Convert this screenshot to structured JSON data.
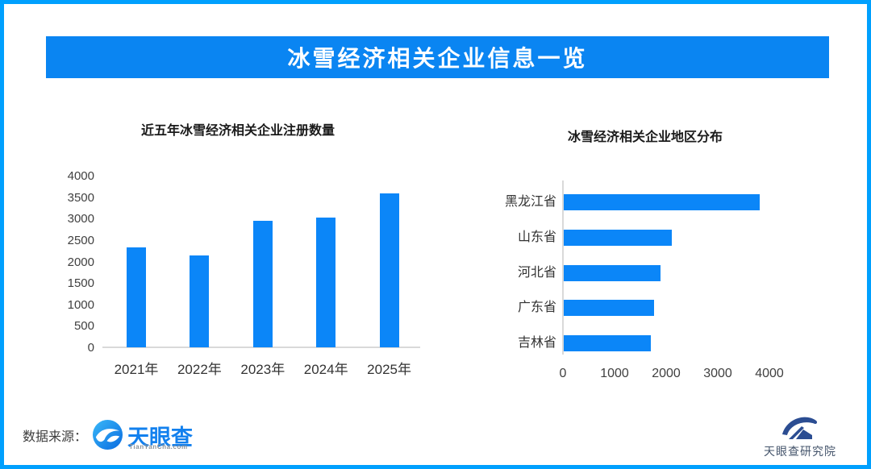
{
  "banner": {
    "title": "冰雪经济相关企业信息一览"
  },
  "colors": {
    "frame_border": "#00a0fe",
    "banner_bg": "#0a85f2",
    "bar_blue": "#0b86f8",
    "axis_line": "#d9d9d9",
    "tianyancha_blue": "#1280ee",
    "research_navy": "#2b4d92"
  },
  "chart_data": [
    {
      "id": "registrations-by-year",
      "type": "bar",
      "title": "近五年冰雪经济相关企业注册数量",
      "categories": [
        "2021年",
        "2022年",
        "2023年",
        "2024年",
        "2025年"
      ],
      "values": [
        2320,
        2140,
        2950,
        3030,
        3580
      ],
      "xlabel": "",
      "ylabel": "",
      "ylim": [
        0,
        4000
      ],
      "yticks": [
        0,
        500,
        1000,
        1500,
        2000,
        2500,
        3000,
        3500,
        4000
      ],
      "grid": false,
      "legend": false
    },
    {
      "id": "distribution-by-region",
      "type": "bar-horizontal",
      "title": "冰雪经济相关企业地区分布",
      "categories": [
        "黑龙江省",
        "山东省",
        "河北省",
        "广东省",
        "吉林省"
      ],
      "values": [
        3800,
        2100,
        1870,
        1750,
        1680
      ],
      "xlabel": "",
      "ylabel": "",
      "xlim": [
        0,
        4000
      ],
      "xticks": [
        0,
        1000,
        2000,
        3000,
        4000
      ],
      "grid": false,
      "legend": false
    }
  ],
  "footer": {
    "source_label": "数据来源：",
    "tianyancha": {
      "wordmark": "天眼查",
      "subtext": "TianYanCha.com"
    },
    "research_institute": {
      "label": "天眼查研究院"
    }
  }
}
